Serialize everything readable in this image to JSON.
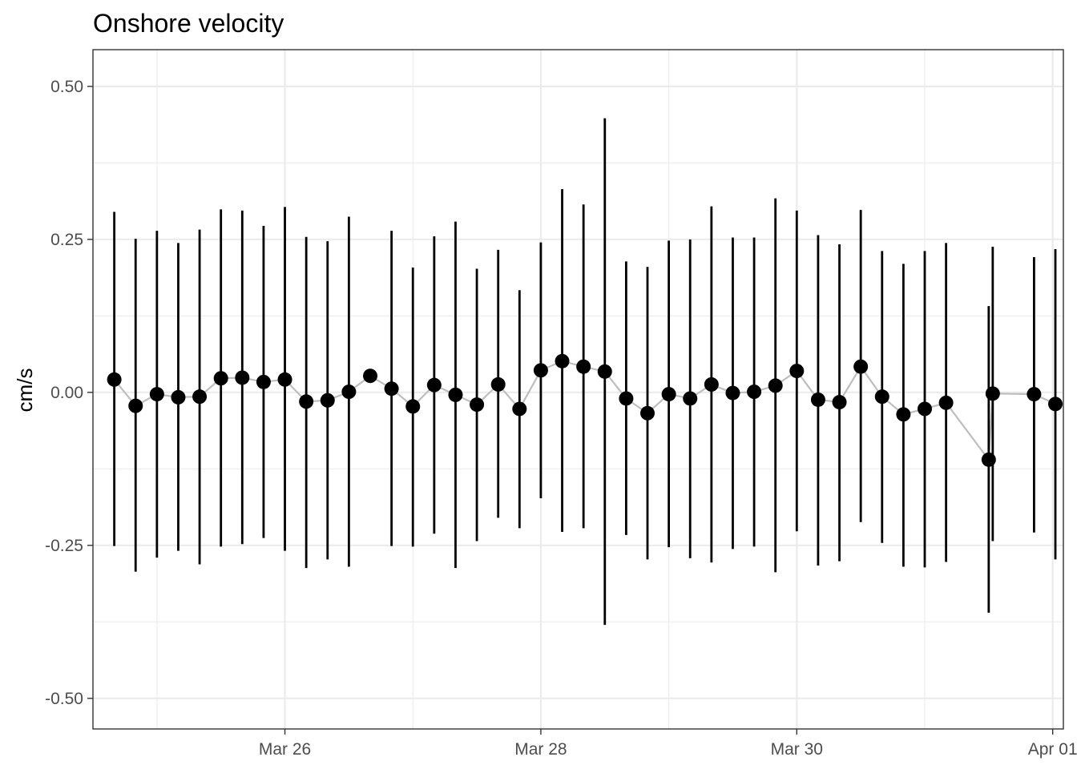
{
  "chart_data": {
    "type": "scatter",
    "title": "Onshore velocity",
    "xlabel": "",
    "ylabel": "cm/s",
    "x_type": "date",
    "xlim": [
      "2022-03-24T12:00",
      "2022-04-01T02:00"
    ],
    "ylim": [
      -0.55,
      0.56
    ],
    "x_ticks": [
      {
        "value": "2022-03-26",
        "label": "Mar 26"
      },
      {
        "value": "2022-03-28",
        "label": "Mar 28"
      },
      {
        "value": "2022-03-30",
        "label": "Mar 30"
      },
      {
        "value": "2022-04-01",
        "label": "Apr 01"
      }
    ],
    "x_minor_ticks": [
      "2022-03-25",
      "2022-03-27",
      "2022-03-29",
      "2022-03-31"
    ],
    "y_ticks": [
      {
        "value": 0.5,
        "label": "0.50"
      },
      {
        "value": 0.25,
        "label": "0.25"
      },
      {
        "value": 0.0,
        "label": "0.00"
      },
      {
        "value": -0.25,
        "label": "-0.25"
      },
      {
        "value": -0.5,
        "label": "-0.50"
      }
    ],
    "y_minor_ticks": [
      0.375,
      0.125,
      -0.125,
      -0.375
    ],
    "grid": true,
    "theme": "bw",
    "colors": {
      "point": "#000000",
      "errorbar": "#000000",
      "line": "#BEBEBE",
      "grid": "#EBEBEB",
      "panel_border": "#333333"
    },
    "series": [
      {
        "points": [
          {
            "x": "2022-03-24T16:00",
            "y": 0.021,
            "lo": -0.251,
            "hi": 0.295
          },
          {
            "x": "2022-03-24T20:00",
            "y": -0.022,
            "lo": -0.293,
            "hi": 0.251
          },
          {
            "x": "2022-03-25T00:00",
            "y": -0.003,
            "lo": -0.27,
            "hi": 0.264
          },
          {
            "x": "2022-03-25T04:00",
            "y": -0.008,
            "lo": -0.259,
            "hi": 0.244
          },
          {
            "x": "2022-03-25T08:00",
            "y": -0.007,
            "lo": -0.281,
            "hi": 0.266
          },
          {
            "x": "2022-03-25T12:00",
            "y": 0.023,
            "lo": -0.252,
            "hi": 0.299
          },
          {
            "x": "2022-03-25T16:00",
            "y": 0.024,
            "lo": -0.248,
            "hi": 0.297
          },
          {
            "x": "2022-03-25T20:00",
            "y": 0.017,
            "lo": -0.238,
            "hi": 0.272
          },
          {
            "x": "2022-03-26T00:00",
            "y": 0.021,
            "lo": -0.259,
            "hi": 0.303
          },
          {
            "x": "2022-03-26T04:00",
            "y": -0.015,
            "lo": -0.287,
            "hi": 0.254
          },
          {
            "x": "2022-03-26T08:00",
            "y": -0.013,
            "lo": -0.273,
            "hi": 0.247
          },
          {
            "x": "2022-03-26T12:00",
            "y": 0.001,
            "lo": -0.285,
            "hi": 0.287
          },
          {
            "x": "2022-03-26T16:00",
            "y": 0.027,
            "lo": null,
            "hi": null
          },
          {
            "x": "2022-03-26T20:00",
            "y": 0.006,
            "lo": -0.251,
            "hi": 0.264
          },
          {
            "x": "2022-03-27T00:00",
            "y": -0.023,
            "lo": -0.252,
            "hi": 0.204
          },
          {
            "x": "2022-03-27T04:00",
            "y": 0.012,
            "lo": -0.231,
            "hi": 0.255
          },
          {
            "x": "2022-03-27T08:00",
            "y": -0.004,
            "lo": -0.287,
            "hi": 0.279
          },
          {
            "x": "2022-03-27T12:00",
            "y": -0.02,
            "lo": -0.243,
            "hi": 0.202
          },
          {
            "x": "2022-03-27T16:00",
            "y": 0.013,
            "lo": -0.205,
            "hi": 0.233
          },
          {
            "x": "2022-03-27T20:00",
            "y": -0.027,
            "lo": -0.222,
            "hi": 0.167
          },
          {
            "x": "2022-03-28T00:00",
            "y": 0.036,
            "lo": -0.173,
            "hi": 0.245
          },
          {
            "x": "2022-03-28T04:00",
            "y": 0.051,
            "lo": -0.228,
            "hi": 0.332
          },
          {
            "x": "2022-03-28T08:00",
            "y": 0.042,
            "lo": -0.222,
            "hi": 0.307
          },
          {
            "x": "2022-03-28T12:00",
            "y": 0.034,
            "lo": -0.38,
            "hi": 0.448
          },
          {
            "x": "2022-03-28T16:00",
            "y": -0.01,
            "lo": -0.233,
            "hi": 0.214
          },
          {
            "x": "2022-03-28T20:00",
            "y": -0.034,
            "lo": -0.273,
            "hi": 0.205
          },
          {
            "x": "2022-03-29T00:00",
            "y": -0.003,
            "lo": -0.253,
            "hi": 0.248
          },
          {
            "x": "2022-03-29T04:00",
            "y": -0.01,
            "lo": -0.271,
            "hi": 0.25
          },
          {
            "x": "2022-03-29T08:00",
            "y": 0.013,
            "lo": -0.278,
            "hi": 0.304
          },
          {
            "x": "2022-03-29T12:00",
            "y": -0.001,
            "lo": -0.256,
            "hi": 0.253
          },
          {
            "x": "2022-03-29T16:00",
            "y": 0.001,
            "lo": -0.252,
            "hi": 0.253
          },
          {
            "x": "2022-03-29T20:00",
            "y": 0.011,
            "lo": -0.294,
            "hi": 0.317
          },
          {
            "x": "2022-03-30T00:00",
            "y": 0.035,
            "lo": -0.227,
            "hi": 0.297
          },
          {
            "x": "2022-03-30T04:00",
            "y": -0.012,
            "lo": -0.283,
            "hi": 0.257
          },
          {
            "x": "2022-03-30T08:00",
            "y": -0.016,
            "lo": -0.276,
            "hi": 0.242
          },
          {
            "x": "2022-03-30T12:00",
            "y": 0.042,
            "lo": -0.212,
            "hi": 0.298
          },
          {
            "x": "2022-03-30T16:00",
            "y": -0.007,
            "lo": -0.246,
            "hi": 0.231
          },
          {
            "x": "2022-03-30T20:00",
            "y": -0.036,
            "lo": -0.285,
            "hi": 0.21
          },
          {
            "x": "2022-03-31T00:00",
            "y": -0.027,
            "lo": -0.286,
            "hi": 0.231
          },
          {
            "x": "2022-03-31T04:00",
            "y": -0.017,
            "lo": -0.277,
            "hi": 0.244
          },
          {
            "x": "2022-03-31T12:00",
            "y": -0.11,
            "lo": -0.36,
            "hi": 0.141
          },
          {
            "x": "2022-03-31T12:45",
            "y": -0.002,
            "lo": -0.243,
            "hi": 0.238
          },
          {
            "x": "2022-03-31T20:30",
            "y": -0.003,
            "lo": -0.229,
            "hi": 0.221
          },
          {
            "x": "2022-04-01T00:30",
            "y": -0.019,
            "lo": -0.273,
            "hi": 0.234
          }
        ]
      }
    ]
  }
}
